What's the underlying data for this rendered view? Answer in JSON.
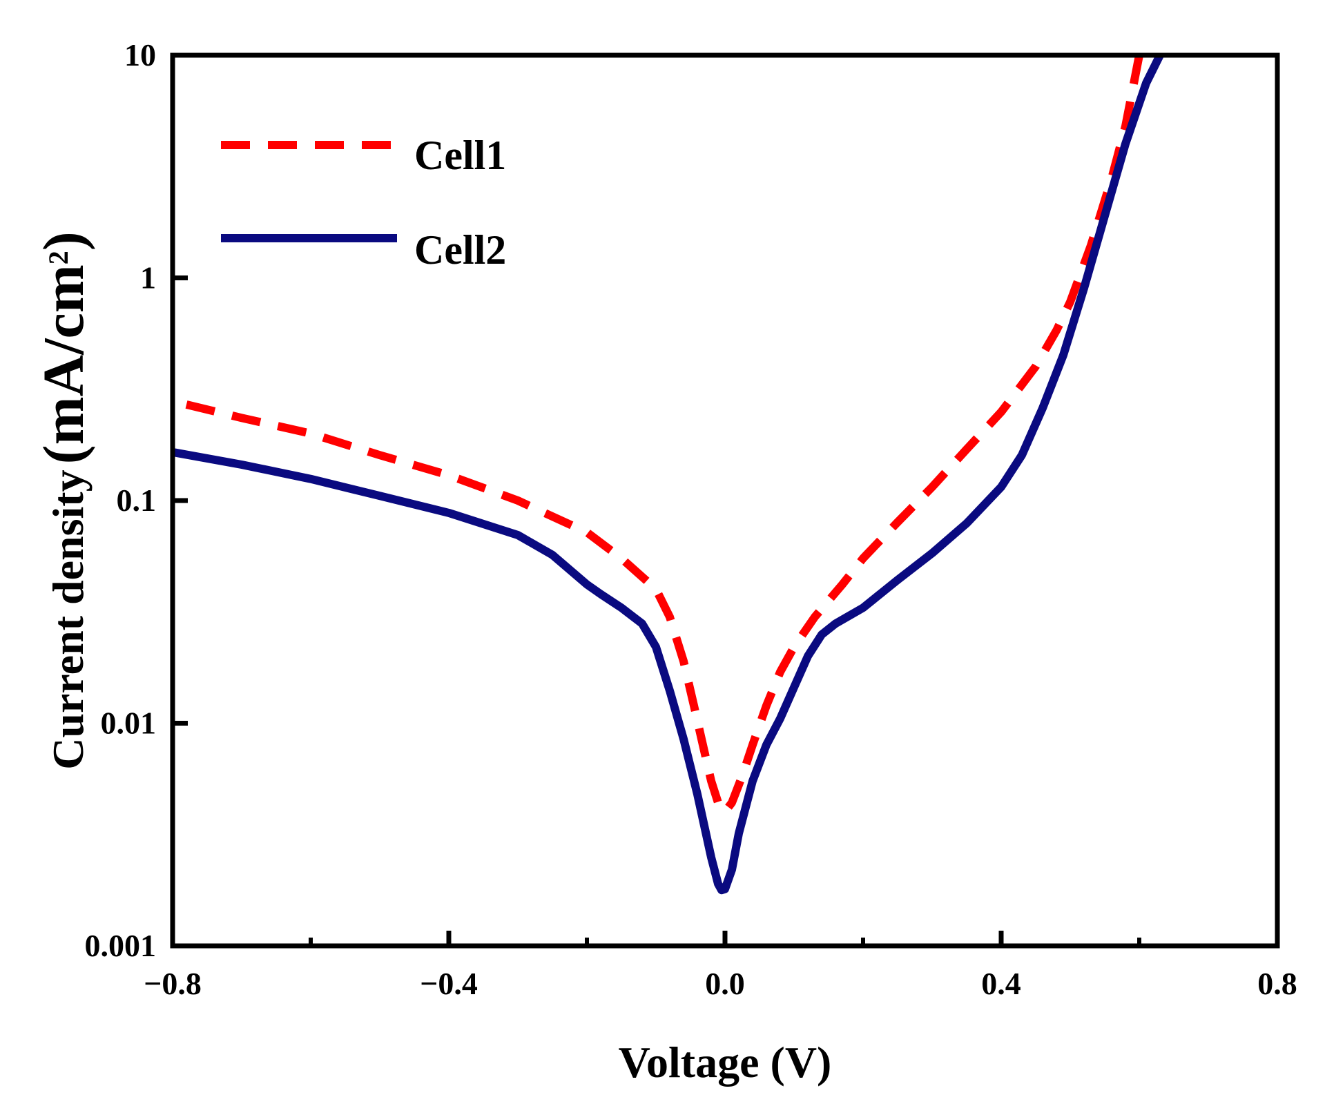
{
  "chart_data": {
    "type": "line",
    "xlabel": "Voltage (V)",
    "ylabel_main": "Current density",
    "ylabel_unit_pre": "(mA/cm",
    "ylabel_unit_sup": "2",
    "ylabel_unit_post": ")",
    "xlim": [
      -0.8,
      0.8
    ],
    "ylim": [
      0.001,
      10
    ],
    "yscale": "log",
    "xticks": [
      {
        "value": -0.8,
        "label": "−0.8"
      },
      {
        "value": -0.4,
        "label": "−0.4"
      },
      {
        "value": 0.0,
        "label": "0.0"
      },
      {
        "value": 0.4,
        "label": "0.4"
      },
      {
        "value": 0.8,
        "label": "0.8"
      }
    ],
    "xminor": [
      -0.6,
      -0.2,
      0.2,
      0.6
    ],
    "yticks": [
      {
        "value": 0.001,
        "label": "0.001"
      },
      {
        "value": 0.01,
        "label": "0.01"
      },
      {
        "value": 0.1,
        "label": "0.1"
      },
      {
        "value": 1,
        "label": "1"
      },
      {
        "value": 10,
        "label": "10"
      }
    ],
    "grid": false,
    "legend_position": "top-left",
    "series": [
      {
        "name": "Cell1",
        "color": "#ff0000",
        "style": "dashed",
        "points": [
          [
            -0.78,
            0.27
          ],
          [
            -0.7,
            0.235
          ],
          [
            -0.6,
            0.2
          ],
          [
            -0.5,
            0.16
          ],
          [
            -0.4,
            0.13
          ],
          [
            -0.3,
            0.1
          ],
          [
            -0.2,
            0.072
          ],
          [
            -0.15,
            0.055
          ],
          [
            -0.1,
            0.04
          ],
          [
            -0.08,
            0.03
          ],
          [
            -0.06,
            0.019
          ],
          [
            -0.045,
            0.012
          ],
          [
            -0.03,
            0.0075
          ],
          [
            -0.02,
            0.0055
          ],
          [
            -0.01,
            0.0044
          ],
          [
            0.0,
            0.004
          ],
          [
            0.01,
            0.0044
          ],
          [
            0.025,
            0.0058
          ],
          [
            0.04,
            0.008
          ],
          [
            0.06,
            0.012
          ],
          [
            0.08,
            0.017
          ],
          [
            0.1,
            0.022
          ],
          [
            0.13,
            0.03
          ],
          [
            0.17,
            0.042
          ],
          [
            0.2,
            0.055
          ],
          [
            0.25,
            0.08
          ],
          [
            0.3,
            0.115
          ],
          [
            0.35,
            0.17
          ],
          [
            0.4,
            0.25
          ],
          [
            0.45,
            0.4
          ],
          [
            0.48,
            0.58
          ],
          [
            0.5,
            0.78
          ],
          [
            0.53,
            1.4
          ],
          [
            0.56,
            2.8
          ],
          [
            0.58,
            4.8
          ],
          [
            0.6,
            10
          ]
        ]
      },
      {
        "name": "Cell2",
        "color": "#0a0a80",
        "style": "solid",
        "points": [
          [
            -0.8,
            0.165
          ],
          [
            -0.7,
            0.145
          ],
          [
            -0.6,
            0.125
          ],
          [
            -0.5,
            0.105
          ],
          [
            -0.4,
            0.088
          ],
          [
            -0.3,
            0.07
          ],
          [
            -0.25,
            0.057
          ],
          [
            -0.2,
            0.042
          ],
          [
            -0.18,
            0.038
          ],
          [
            -0.15,
            0.033
          ],
          [
            -0.12,
            0.028
          ],
          [
            -0.1,
            0.022
          ],
          [
            -0.08,
            0.014
          ],
          [
            -0.06,
            0.0085
          ],
          [
            -0.04,
            0.0048
          ],
          [
            -0.02,
            0.0025
          ],
          [
            -0.01,
            0.0019
          ],
          [
            -0.005,
            0.00178
          ],
          [
            0.0,
            0.0018
          ],
          [
            0.01,
            0.0022
          ],
          [
            0.02,
            0.0032
          ],
          [
            0.04,
            0.0055
          ],
          [
            0.06,
            0.008
          ],
          [
            0.08,
            0.0105
          ],
          [
            0.1,
            0.0145
          ],
          [
            0.12,
            0.02
          ],
          [
            0.14,
            0.025
          ],
          [
            0.16,
            0.028
          ],
          [
            0.2,
            0.033
          ],
          [
            0.25,
            0.044
          ],
          [
            0.3,
            0.058
          ],
          [
            0.35,
            0.079
          ],
          [
            0.4,
            0.115
          ],
          [
            0.43,
            0.16
          ],
          [
            0.46,
            0.26
          ],
          [
            0.49,
            0.45
          ],
          [
            0.52,
            0.9
          ],
          [
            0.55,
            1.9
          ],
          [
            0.58,
            4.0
          ],
          [
            0.61,
            7.5
          ],
          [
            0.63,
            10
          ]
        ]
      }
    ]
  }
}
